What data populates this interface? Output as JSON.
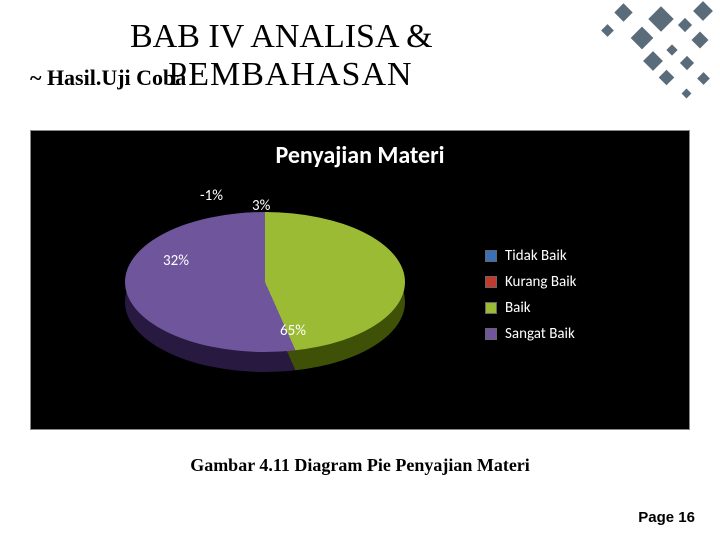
{
  "title": {
    "line1": "BAB IV ANALISA &",
    "line2": "PEMBAHASAN",
    "subtitle": "~ Hasil.Uji Coba"
  },
  "chart": {
    "type": "pie",
    "title": "Penyajian Materi",
    "title_fontsize": 24,
    "title_color": "#ffffff",
    "background_color": "#000000",
    "is_3d": true,
    "slices": [
      {
        "label": "Tidak Baik",
        "value": -1,
        "display": "-1%",
        "color": "#3b6fb6"
      },
      {
        "label": "Kurang Baik",
        "value": 3,
        "display": "3%",
        "color": "#c23a2e"
      },
      {
        "label": "Baik",
        "value": 65,
        "display": "65%",
        "color": "#9bbb35"
      },
      {
        "label": "Sangat Baik",
        "value": 32,
        "display": "32%",
        "color": "#6f559b"
      }
    ],
    "label_color": "#ffffff",
    "label_fontsize": 15,
    "legend_fontsize": 15,
    "legend_marker": "square"
  },
  "caption": "Gambar 4.11 Diagram Pie Penyajian Materi",
  "footer": "Page 16",
  "decoration_color": "#5a6b7a"
}
